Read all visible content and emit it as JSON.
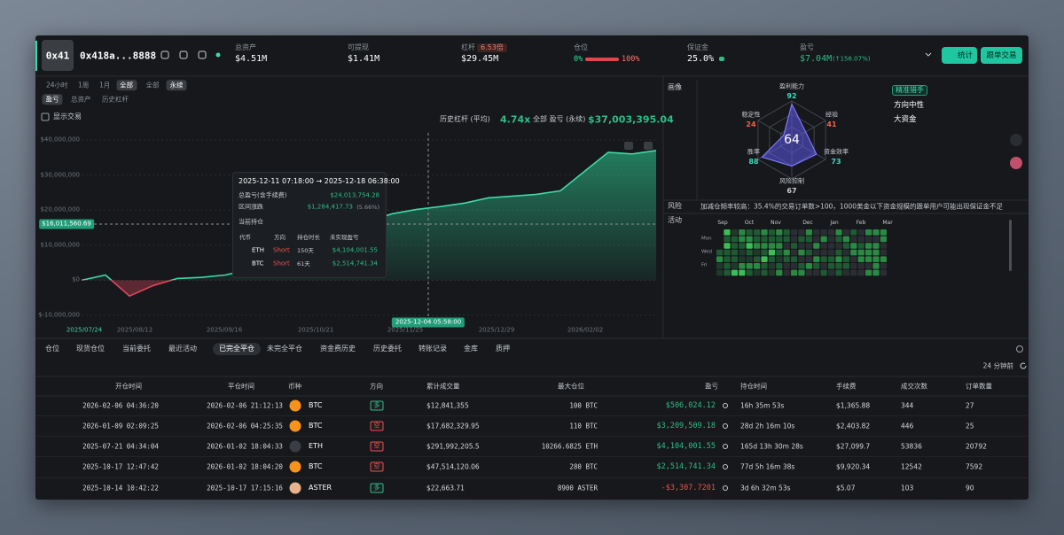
{
  "header": {
    "avatar": "0x41",
    "address": "0x418a...8888",
    "stats": [
      {
        "label": "总资产",
        "value": "$4.51M"
      },
      {
        "label": "可提现",
        "value": "$1.41M"
      },
      {
        "label": "杠杆",
        "badge": "6.53倍",
        "value": "$29.45M"
      },
      {
        "label": "仓位",
        "min": "0%",
        "max": "100%"
      },
      {
        "label": "保证金",
        "value": "25.0%"
      },
      {
        "label": "盈亏",
        "value": "$7.04M",
        "change": "(↑156.07%)"
      }
    ],
    "buttons": [
      "统计",
      "跟单交易"
    ]
  },
  "filters": {
    "periods": [
      "24小时",
      "1周",
      "1月",
      "全部"
    ],
    "market": [
      "全部",
      "永续"
    ],
    "metrics": [
      "盈亏",
      "总资产",
      "历史杠杆"
    ],
    "show_trades": "显示交易"
  },
  "summary": {
    "leverage_label": "历史杠杆 (平均)",
    "leverage": "4.74x",
    "pnl_label": "全部 盈亏 (永续)",
    "pnl": "$37,003,395.04"
  },
  "chart_data": {
    "type": "area",
    "color": "#3fd9a6",
    "negative_color": "#e0475f",
    "values": [
      0,
      1500000,
      -4500000,
      -1500000,
      500000,
      800000,
      1500000,
      3000000,
      5000000,
      8000000,
      11000000,
      14000000,
      17000000,
      19000000,
      20200000,
      21000000,
      22000000,
      23500000,
      24000000,
      24500000,
      25500000,
      31000000,
      36500000,
      36000000,
      37000000
    ],
    "ylim": [
      -10000000,
      40000000
    ],
    "yticks": [
      {
        "value": 40000000,
        "label": "$40,000,000"
      },
      {
        "value": 30000000,
        "label": "$30,000,000"
      },
      {
        "value": 20000000,
        "label": "$20,000,000"
      },
      {
        "value": 10000000,
        "label": "$10,000,000"
      },
      {
        "value": 0,
        "label": "$0"
      },
      {
        "value": -10000000,
        "label": "$-10,000,000"
      }
    ],
    "xtick_labels": [
      "2025/07/24",
      "2025/08/12",
      "2025/09/16",
      "2025/10/21",
      "2025/11/25",
      "2025/12/29",
      "2026/02/02"
    ],
    "grid": true,
    "crosshair": {
      "y": {
        "value": 16011560.69,
        "label": "$16,011,560.69"
      },
      "x_label": "2025-12-04 05:58:00"
    }
  },
  "tooltip": {
    "range": "2025-12-11 07:18:00 → 2025-12-18 06:38:00",
    "total_label": "总盈亏(含手续费)",
    "total": "$24,013,754.28",
    "change_label": "区间涨跌",
    "change": "$1,284,417.73",
    "change_pct": "(5.66%)",
    "holdings_label": "当前持仓",
    "headers": [
      "代币",
      "方向",
      "持仓时长",
      "未实现盈亏"
    ],
    "rows": [
      {
        "coin": "ETH",
        "side": "Short",
        "duration": "150天",
        "pnl": "$4,104,001.55"
      },
      {
        "coin": "BTC",
        "side": "Short",
        "duration": "61天",
        "pnl": "$2,514,741.34"
      }
    ]
  },
  "profile": {
    "title": "画像",
    "center": 64,
    "axes": [
      {
        "name": "盈利能力",
        "value": 92,
        "color": "#3fd9c0"
      },
      {
        "name": "经验",
        "value": 41,
        "color": "#f0644a"
      },
      {
        "name": "资金效率",
        "value": 73,
        "color": "#3fd9c0"
      },
      {
        "name": "风险控制",
        "value": 67,
        "color": "#c8cbd0"
      },
      {
        "name": "胜率",
        "value": 88,
        "color": "#3fd9c0"
      },
      {
        "name": "稳定性",
        "value": 24,
        "color": "#f0644a"
      }
    ],
    "tags": [
      "精准猎手",
      "方向中性",
      "大资金"
    ]
  },
  "risk": {
    "label": "风险",
    "text": "加减仓频率较高：35.4%的交易订单数>100，1000美金以下资金规模的跟单用户可能出现保证金不足"
  },
  "activity": {
    "label": "活动",
    "months": [
      "Sep",
      "Oct",
      "Nov",
      "Dec",
      "Jan",
      "Feb",
      "Mar"
    ],
    "days": [
      "Mon",
      "Wed",
      "Fri"
    ]
  },
  "tabs": {
    "items": [
      "仓位",
      "现货仓位",
      "当前委托",
      "最近活动",
      "已完全平仓",
      "未完全平仓",
      "资金费历史",
      "历史委托",
      "转账记录",
      "金库",
      "质押"
    ],
    "active": 4,
    "updated": "24 分钟前"
  },
  "table": {
    "headers": [
      "开仓时间",
      "平仓时间",
      "币种",
      "方向",
      "累计成交量",
      "最大仓位",
      "盈亏",
      "持仓时间",
      "手续费",
      "成交次数",
      "订单数量"
    ],
    "rows": [
      {
        "open": "2026-02-06 04:36:20",
        "close": "2026-02-06 21:12:13",
        "coin": "BTC",
        "coin_color": "#f7931a",
        "direction": "多",
        "direction_color": "#2ebd85",
        "volume": "$12,841,355",
        "max_position": "100 BTC",
        "pnl": "$506,024.12",
        "pnl_color": "#2ebd85",
        "duration": "16h 35m 53s",
        "fee": "$1,365.88",
        "fills": "344",
        "orders": "27"
      },
      {
        "open": "2026-01-09 02:09:25",
        "close": "2026-02-06 04:25:35",
        "coin": "BTC",
        "coin_color": "#f7931a",
        "direction": "空",
        "direction_color": "#f0504a",
        "volume": "$17,682,329.95",
        "max_position": "110 BTC",
        "pnl": "$3,209,509.18",
        "pnl_color": "#2ebd85",
        "duration": "28d 2h 16m 10s",
        "fee": "$2,403.82",
        "fills": "446",
        "orders": "25"
      },
      {
        "open": "2025-07-21 04:34:04",
        "close": "2026-01-02 18:04:33",
        "coin": "ETH",
        "coin_color": "#3a3d44",
        "direction": "空",
        "direction_color": "#f0504a",
        "volume": "$291,992,205.5",
        "max_position": "10266.6825 ETH",
        "pnl": "$4,104,001.55",
        "pnl_color": "#2ebd85",
        "duration": "165d 13h 30m 28s",
        "fee": "$27,099.7",
        "fills": "53836",
        "orders": "20792"
      },
      {
        "open": "2025-10-17 12:47:42",
        "close": "2026-01-02 18:04:20",
        "coin": "BTC",
        "coin_color": "#f7931a",
        "direction": "空",
        "direction_color": "#f0504a",
        "volume": "$47,514,120.06",
        "max_position": "280 BTC",
        "pnl": "$2,514,741.34",
        "pnl_color": "#2ebd85",
        "duration": "77d 5h 16m 38s",
        "fee": "$9,920.34",
        "fills": "12542",
        "orders": "7592"
      },
      {
        "open": "2025-10-14 10:42:22",
        "close": "2025-10-17 17:15:16",
        "coin": "ASTER",
        "coin_color": "#e8b28c",
        "direction": "多",
        "direction_color": "#2ebd85",
        "volume": "$22,663.71",
        "max_position": "8900 ASTER",
        "pnl": "-$3,307.7201",
        "pnl_color": "#f0504a",
        "duration": "3d 6h 32m 53s",
        "fee": "$5.07",
        "fills": "103",
        "orders": "90"
      }
    ]
  }
}
